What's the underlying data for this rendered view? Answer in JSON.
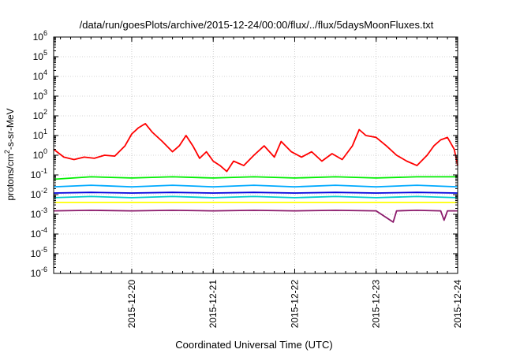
{
  "chart_data": {
    "type": "line",
    "title": "/data/run/goesPlots/archive/2015-12-24/00:00/flux/../flux/5daysMoonFluxes.txt",
    "xlabel": "Coordinated Universal Time (UTC)",
    "ylabel_parts": {
      "main": "protons/cm",
      "sup": "2",
      "rest": "-s-sr-MeV"
    },
    "y_scale": "log",
    "ylim": [
      1e-06,
      1000000.0
    ],
    "y_ticks": [
      {
        "value": 1000000.0,
        "base": "10",
        "exp": "6"
      },
      {
        "value": 100000.0,
        "base": "10",
        "exp": "5"
      },
      {
        "value": 10000.0,
        "base": "10",
        "exp": "4"
      },
      {
        "value": 1000.0,
        "base": "10",
        "exp": "3"
      },
      {
        "value": 100.0,
        "base": "10",
        "exp": "2"
      },
      {
        "value": 10.0,
        "base": "10",
        "exp": "1"
      },
      {
        "value": 1.0,
        "base": "10",
        "exp": "0"
      },
      {
        "value": 0.1,
        "base": "10",
        "exp": "-1"
      },
      {
        "value": 0.01,
        "base": "10",
        "exp": "-2"
      },
      {
        "value": 0.001,
        "base": "10",
        "exp": "-3"
      },
      {
        "value": 0.0001,
        "base": "10",
        "exp": "-4"
      },
      {
        "value": 1e-05,
        "base": "10",
        "exp": "-5"
      },
      {
        "value": 1e-06,
        "base": "10",
        "exp": "-6"
      }
    ],
    "xlim": [
      "2015-12-19 01:00",
      "2015-12-24 00:00"
    ],
    "x_ticks": [
      "2015-12-20",
      "2015-12-21",
      "2015-12-22",
      "2015-12-23",
      "2015-12-24"
    ],
    "grid": true,
    "series": [
      {
        "color": "#ff0000",
        "values": [
          [
            "2015-12-19 01:00",
            2.0
          ],
          [
            "2015-12-19 04:00",
            0.8
          ],
          [
            "2015-12-19 07:00",
            0.6
          ],
          [
            "2015-12-19 10:00",
            0.8
          ],
          [
            "2015-12-19 13:00",
            0.7
          ],
          [
            "2015-12-19 16:00",
            1.0
          ],
          [
            "2015-12-19 19:00",
            0.9
          ],
          [
            "2015-12-19 22:00",
            3.0
          ],
          [
            "2015-12-20 00:00",
            12
          ],
          [
            "2015-12-20 02:00",
            25
          ],
          [
            "2015-12-20 04:00",
            40
          ],
          [
            "2015-12-20 06:00",
            15
          ],
          [
            "2015-12-20 09:00",
            5
          ],
          [
            "2015-12-20 12:00",
            1.5
          ],
          [
            "2015-12-20 14:00",
            3
          ],
          [
            "2015-12-20 16:00",
            10
          ],
          [
            "2015-12-20 18:00",
            3
          ],
          [
            "2015-12-20 20:00",
            0.7
          ],
          [
            "2015-12-20 22:00",
            1.5
          ],
          [
            "2015-12-21 00:00",
            0.5
          ],
          [
            "2015-12-21 02:00",
            0.3
          ],
          [
            "2015-12-21 04:00",
            0.15
          ],
          [
            "2015-12-21 06:00",
            0.5
          ],
          [
            "2015-12-21 09:00",
            0.3
          ],
          [
            "2015-12-21 12:00",
            1.0
          ],
          [
            "2015-12-21 15:00",
            3
          ],
          [
            "2015-12-21 18:00",
            0.8
          ],
          [
            "2015-12-21 20:00",
            5
          ],
          [
            "2015-12-21 23:00",
            1.5
          ],
          [
            "2015-12-22 02:00",
            0.8
          ],
          [
            "2015-12-22 05:00",
            1.5
          ],
          [
            "2015-12-22 08:00",
            0.5
          ],
          [
            "2015-12-22 11:00",
            1.2
          ],
          [
            "2015-12-22 14:00",
            0.6
          ],
          [
            "2015-12-22 17:00",
            3
          ],
          [
            "2015-12-22 19:00",
            20
          ],
          [
            "2015-12-22 21:00",
            10
          ],
          [
            "2015-12-23 00:00",
            8
          ],
          [
            "2015-12-23 03:00",
            3
          ],
          [
            "2015-12-23 06:00",
            1.0
          ],
          [
            "2015-12-23 09:00",
            0.5
          ],
          [
            "2015-12-23 12:00",
            0.3
          ],
          [
            "2015-12-23 15:00",
            1.0
          ],
          [
            "2015-12-23 17:00",
            3
          ],
          [
            "2015-12-23 19:00",
            6
          ],
          [
            "2015-12-23 21:00",
            8
          ],
          [
            "2015-12-23 22:00",
            4
          ],
          [
            "2015-12-23 23:00",
            2
          ],
          [
            "2015-12-24 00:00",
            0.3
          ]
        ]
      },
      {
        "color": "#00ee00",
        "values": [
          [
            "2015-12-19 01:00",
            0.06
          ],
          [
            "2015-12-19 12:00",
            0.08
          ],
          [
            "2015-12-20 00:00",
            0.07
          ],
          [
            "2015-12-20 12:00",
            0.08
          ],
          [
            "2015-12-21 00:00",
            0.07
          ],
          [
            "2015-12-21 12:00",
            0.08
          ],
          [
            "2015-12-22 00:00",
            0.07
          ],
          [
            "2015-12-22 12:00",
            0.08
          ],
          [
            "2015-12-23 00:00",
            0.07
          ],
          [
            "2015-12-23 12:00",
            0.08
          ],
          [
            "2015-12-24 00:00",
            0.08
          ]
        ]
      },
      {
        "color": "#00aaff",
        "values": [
          [
            "2015-12-19 01:00",
            0.025
          ],
          [
            "2015-12-19 12:00",
            0.03
          ],
          [
            "2015-12-20 00:00",
            0.025
          ],
          [
            "2015-12-20 12:00",
            0.03
          ],
          [
            "2015-12-21 00:00",
            0.025
          ],
          [
            "2015-12-21 12:00",
            0.03
          ],
          [
            "2015-12-22 00:00",
            0.025
          ],
          [
            "2015-12-22 12:00",
            0.03
          ],
          [
            "2015-12-23 00:00",
            0.025
          ],
          [
            "2015-12-23 12:00",
            0.03
          ],
          [
            "2015-12-24 00:00",
            0.025
          ]
        ]
      },
      {
        "color": "#0000dd",
        "values": [
          [
            "2015-12-19 01:00",
            0.012
          ],
          [
            "2015-12-19 12:00",
            0.013
          ],
          [
            "2015-12-20 00:00",
            0.012
          ],
          [
            "2015-12-20 12:00",
            0.013
          ],
          [
            "2015-12-21 00:00",
            0.012
          ],
          [
            "2015-12-21 12:00",
            0.013
          ],
          [
            "2015-12-22 00:00",
            0.012
          ],
          [
            "2015-12-22 12:00",
            0.013
          ],
          [
            "2015-12-23 00:00",
            0.012
          ],
          [
            "2015-12-23 12:00",
            0.013
          ],
          [
            "2015-12-24 00:00",
            0.012
          ]
        ]
      },
      {
        "color": "#00cccc",
        "values": [
          [
            "2015-12-19 01:00",
            0.007
          ],
          [
            "2015-12-19 12:00",
            0.008
          ],
          [
            "2015-12-20 00:00",
            0.007
          ],
          [
            "2015-12-20 12:00",
            0.008
          ],
          [
            "2015-12-21 00:00",
            0.007
          ],
          [
            "2015-12-21 12:00",
            0.008
          ],
          [
            "2015-12-22 00:00",
            0.007
          ],
          [
            "2015-12-22 12:00",
            0.008
          ],
          [
            "2015-12-23 00:00",
            0.007
          ],
          [
            "2015-12-23 12:00",
            0.008
          ],
          [
            "2015-12-24 00:00",
            0.007
          ]
        ]
      },
      {
        "color": "#ffff00",
        "values": [
          [
            "2015-12-19 01:00",
            0.004
          ],
          [
            "2015-12-19 12:00",
            0.004
          ],
          [
            "2015-12-20 00:00",
            0.004
          ],
          [
            "2015-12-20 12:00",
            0.004
          ],
          [
            "2015-12-21 00:00",
            0.004
          ],
          [
            "2015-12-21 12:00",
            0.004
          ],
          [
            "2015-12-22 00:00",
            0.004
          ],
          [
            "2015-12-22 12:00",
            0.004
          ],
          [
            "2015-12-23 00:00",
            0.004
          ],
          [
            "2015-12-23 12:00",
            0.004
          ],
          [
            "2015-12-24 00:00",
            0.004
          ]
        ]
      },
      {
        "color": "#8b1a6b",
        "values": [
          [
            "2015-12-19 01:00",
            0.0015
          ],
          [
            "2015-12-19 12:00",
            0.0016
          ],
          [
            "2015-12-20 00:00",
            0.0015
          ],
          [
            "2015-12-20 12:00",
            0.0016
          ],
          [
            "2015-12-21 00:00",
            0.0015
          ],
          [
            "2015-12-21 12:00",
            0.0016
          ],
          [
            "2015-12-22 00:00",
            0.0015
          ],
          [
            "2015-12-22 12:00",
            0.0016
          ],
          [
            "2015-12-23 00:00",
            0.0015
          ],
          [
            "2015-12-23 05:00",
            0.0004
          ],
          [
            "2015-12-23 06:00",
            0.0015
          ],
          [
            "2015-12-23 12:00",
            0.0016
          ],
          [
            "2015-12-23 19:00",
            0.0015
          ],
          [
            "2015-12-23 20:00",
            0.0005
          ],
          [
            "2015-12-23 21:00",
            0.0015
          ],
          [
            "2015-12-24 00:00",
            0.0015
          ]
        ]
      }
    ]
  }
}
